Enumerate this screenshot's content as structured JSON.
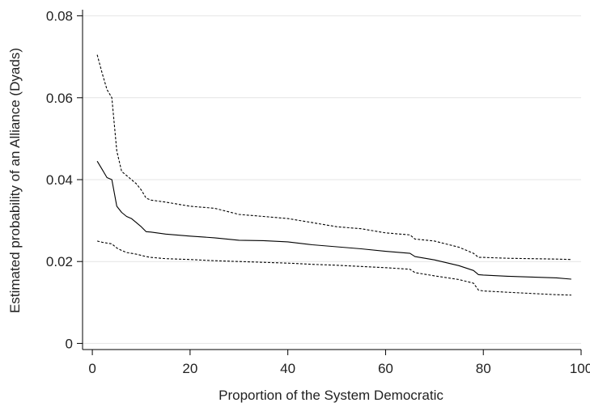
{
  "chart_data": {
    "type": "line",
    "title": "",
    "xlabel": "Proportion of the System Democratic",
    "ylabel": "Estimated probability of an Alliance (Dyads)",
    "xlim": [
      -2,
      100
    ],
    "ylim": [
      -0.0015,
      0.0815
    ],
    "x_ticks": [
      0,
      20,
      40,
      60,
      80,
      100
    ],
    "y_ticks": [
      0,
      0.02,
      0.04,
      0.06,
      0.08
    ],
    "x_tick_labels": [
      "0",
      "20",
      "40",
      "60",
      "80",
      "100"
    ],
    "y_tick_labels": [
      "0",
      "0.02",
      "0.04",
      "0.06",
      "0.08"
    ],
    "grid": "horizontal",
    "legend": "none",
    "colors": {
      "line": "#000000",
      "grid": "#e4e4e4",
      "axis": "#000000"
    },
    "series": [
      {
        "style": "dashed",
        "x": [
          1,
          2,
          3,
          4,
          5,
          6,
          7,
          8,
          9,
          10,
          11,
          12,
          15,
          20,
          25,
          30,
          35,
          40,
          45,
          50,
          55,
          60,
          65,
          66,
          70,
          75,
          78,
          79,
          80,
          85,
          90,
          95,
          98
        ],
        "y": [
          0.0705,
          0.066,
          0.062,
          0.06,
          0.047,
          0.042,
          0.041,
          0.04,
          0.039,
          0.0375,
          0.0355,
          0.035,
          0.0345,
          0.0335,
          0.033,
          0.0315,
          0.031,
          0.0305,
          0.0295,
          0.0285,
          0.028,
          0.027,
          0.0265,
          0.0255,
          0.025,
          0.0235,
          0.022,
          0.021,
          0.021,
          0.0208,
          0.0207,
          0.0206,
          0.0205
        ]
      },
      {
        "style": "solid",
        "x": [
          1,
          2,
          3,
          4,
          5,
          6,
          7,
          8,
          9,
          10,
          11,
          12,
          15,
          20,
          25,
          30,
          35,
          40,
          45,
          50,
          55,
          60,
          65,
          66,
          70,
          75,
          78,
          79,
          80,
          85,
          90,
          95,
          98
        ],
        "y": [
          0.0445,
          0.0425,
          0.0405,
          0.04,
          0.0335,
          0.032,
          0.031,
          0.0305,
          0.0295,
          0.0285,
          0.0273,
          0.0272,
          0.0267,
          0.0262,
          0.0258,
          0.0252,
          0.0251,
          0.0248,
          0.0241,
          0.0236,
          0.0231,
          0.0225,
          0.022,
          0.0212,
          0.0204,
          0.019,
          0.0178,
          0.0168,
          0.0167,
          0.0164,
          0.0162,
          0.016,
          0.0157
        ]
      },
      {
        "style": "dashed",
        "x": [
          1,
          2,
          3,
          4,
          5,
          6,
          7,
          8,
          9,
          10,
          11,
          12,
          15,
          20,
          25,
          30,
          35,
          40,
          45,
          50,
          55,
          60,
          65,
          66,
          70,
          75,
          78,
          79,
          80,
          85,
          90,
          95,
          98
        ],
        "y": [
          0.025,
          0.0247,
          0.0245,
          0.0243,
          0.0233,
          0.0227,
          0.0222,
          0.022,
          0.0218,
          0.0215,
          0.0212,
          0.021,
          0.0207,
          0.0205,
          0.0202,
          0.02,
          0.0198,
          0.0196,
          0.0193,
          0.0191,
          0.0188,
          0.0185,
          0.0181,
          0.0173,
          0.0165,
          0.0156,
          0.0147,
          0.013,
          0.0128,
          0.0125,
          0.0122,
          0.0119,
          0.0118
        ]
      }
    ]
  }
}
